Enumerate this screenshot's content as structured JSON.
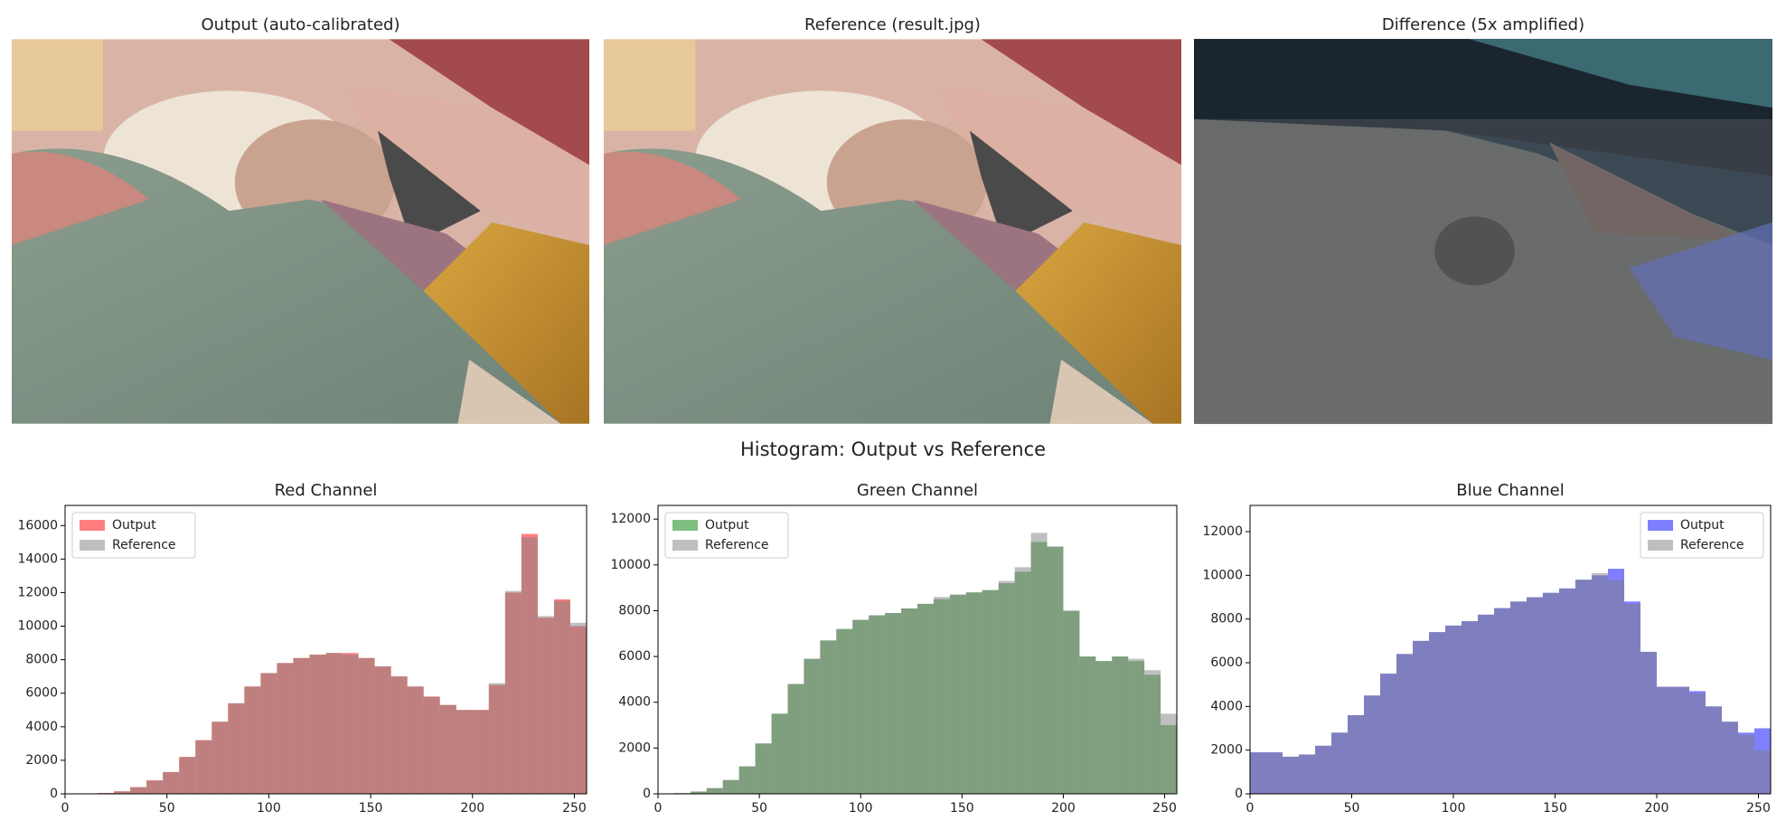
{
  "suptitle": "Histogram: Output vs Reference",
  "chart_data": [
    {
      "type": "image",
      "title": "Output (auto-calibrated)"
    },
    {
      "type": "image",
      "title": "Reference (result.jpg)"
    },
    {
      "type": "image",
      "title": "Difference (5x amplified)"
    },
    {
      "type": "histogram",
      "title": "Red Channel",
      "legend": "upper left",
      "bins": [
        0,
        8,
        16,
        24,
        32,
        40,
        48,
        56,
        64,
        72,
        80,
        88,
        96,
        104,
        112,
        120,
        128,
        136,
        144,
        152,
        160,
        168,
        176,
        184,
        192,
        200,
        208,
        216,
        224,
        232,
        240,
        248,
        256
      ],
      "series": [
        {
          "name": "Output",
          "color": "red",
          "alpha": 0.5,
          "values": [
            0,
            0,
            50,
            150,
            400,
            800,
            1300,
            2200,
            3200,
            4300,
            5400,
            6400,
            7200,
            7800,
            8100,
            8300,
            8400,
            8400,
            8100,
            7600,
            7000,
            6400,
            5800,
            5300,
            5000,
            5000,
            6500,
            12000,
            15500,
            10500,
            11600,
            10000
          ]
        },
        {
          "name": "Reference",
          "color": "gray",
          "alpha": 0.5,
          "values": [
            0,
            0,
            50,
            150,
            400,
            800,
            1300,
            2200,
            3200,
            4300,
            5400,
            6400,
            7200,
            7800,
            8100,
            8300,
            8400,
            8300,
            8100,
            7600,
            7000,
            6400,
            5800,
            5300,
            5000,
            5000,
            6600,
            12100,
            15300,
            10600,
            11500,
            10200
          ]
        }
      ],
      "xlim": [
        0,
        256
      ],
      "xticks": [
        0,
        50,
        100,
        150,
        200,
        250
      ],
      "ylim": [
        0,
        17200
      ],
      "yticks": [
        0,
        2000,
        4000,
        6000,
        8000,
        10000,
        12000,
        14000,
        16000
      ]
    },
    {
      "type": "histogram",
      "title": "Green Channel",
      "legend": "upper left",
      "bins": [
        0,
        8,
        16,
        24,
        32,
        40,
        48,
        56,
        64,
        72,
        80,
        88,
        96,
        104,
        112,
        120,
        128,
        136,
        144,
        152,
        160,
        168,
        176,
        184,
        192,
        200,
        208,
        216,
        224,
        232,
        240,
        248,
        256
      ],
      "series": [
        {
          "name": "Output",
          "color": "green",
          "alpha": 0.5,
          "values": [
            0,
            30,
            100,
            250,
            600,
            1200,
            2200,
            3500,
            4800,
            5900,
            6700,
            7200,
            7600,
            7800,
            7900,
            8100,
            8300,
            8500,
            8700,
            8800,
            8900,
            9200,
            9700,
            11000,
            10800,
            8000,
            6000,
            5800,
            6000,
            5800,
            5200,
            3000
          ]
        },
        {
          "name": "Reference",
          "color": "gray",
          "alpha": 0.5,
          "values": [
            0,
            30,
            100,
            250,
            600,
            1200,
            2200,
            3500,
            4800,
            5900,
            6700,
            7200,
            7600,
            7800,
            7900,
            8100,
            8300,
            8600,
            8700,
            8800,
            8900,
            9300,
            9900,
            11400,
            10800,
            8000,
            6000,
            5800,
            6000,
            5900,
            5400,
            3500
          ]
        }
      ],
      "xlim": [
        0,
        256
      ],
      "xticks": [
        0,
        50,
        100,
        150,
        200,
        250
      ],
      "ylim": [
        0,
        12600
      ],
      "yticks": [
        0,
        2000,
        4000,
        6000,
        8000,
        10000,
        12000
      ]
    },
    {
      "type": "histogram",
      "title": "Blue Channel",
      "legend": "upper right",
      "bins": [
        0,
        8,
        16,
        24,
        32,
        40,
        48,
        56,
        64,
        72,
        80,
        88,
        96,
        104,
        112,
        120,
        128,
        136,
        144,
        152,
        160,
        168,
        176,
        184,
        192,
        200,
        208,
        216,
        224,
        232,
        240,
        248,
        256
      ],
      "series": [
        {
          "name": "Output",
          "color": "blue",
          "alpha": 0.5,
          "values": [
            1900,
            1900,
            1700,
            1800,
            2200,
            2800,
            3600,
            4500,
            5500,
            6400,
            7000,
            7400,
            7700,
            7900,
            8200,
            8500,
            8800,
            9000,
            9200,
            9400,
            9800,
            10000,
            10300,
            8800,
            6500,
            4900,
            4900,
            4700,
            4000,
            3300,
            2800,
            3000
          ]
        },
        {
          "name": "Reference",
          "color": "gray",
          "alpha": 0.5,
          "values": [
            1900,
            1900,
            1700,
            1800,
            2200,
            2800,
            3600,
            4500,
            5500,
            6400,
            7000,
            7400,
            7700,
            7900,
            8200,
            8500,
            8800,
            9000,
            9200,
            9400,
            9800,
            10100,
            9800,
            8700,
            6500,
            4900,
            4900,
            4600,
            4000,
            3300,
            2700,
            2000
          ]
        }
      ],
      "xlim": [
        0,
        256
      ],
      "xticks": [
        0,
        50,
        100,
        150,
        200,
        250
      ],
      "ylim": [
        0,
        13200
      ],
      "yticks": [
        0,
        2000,
        4000,
        6000,
        8000,
        10000,
        12000
      ]
    }
  ]
}
